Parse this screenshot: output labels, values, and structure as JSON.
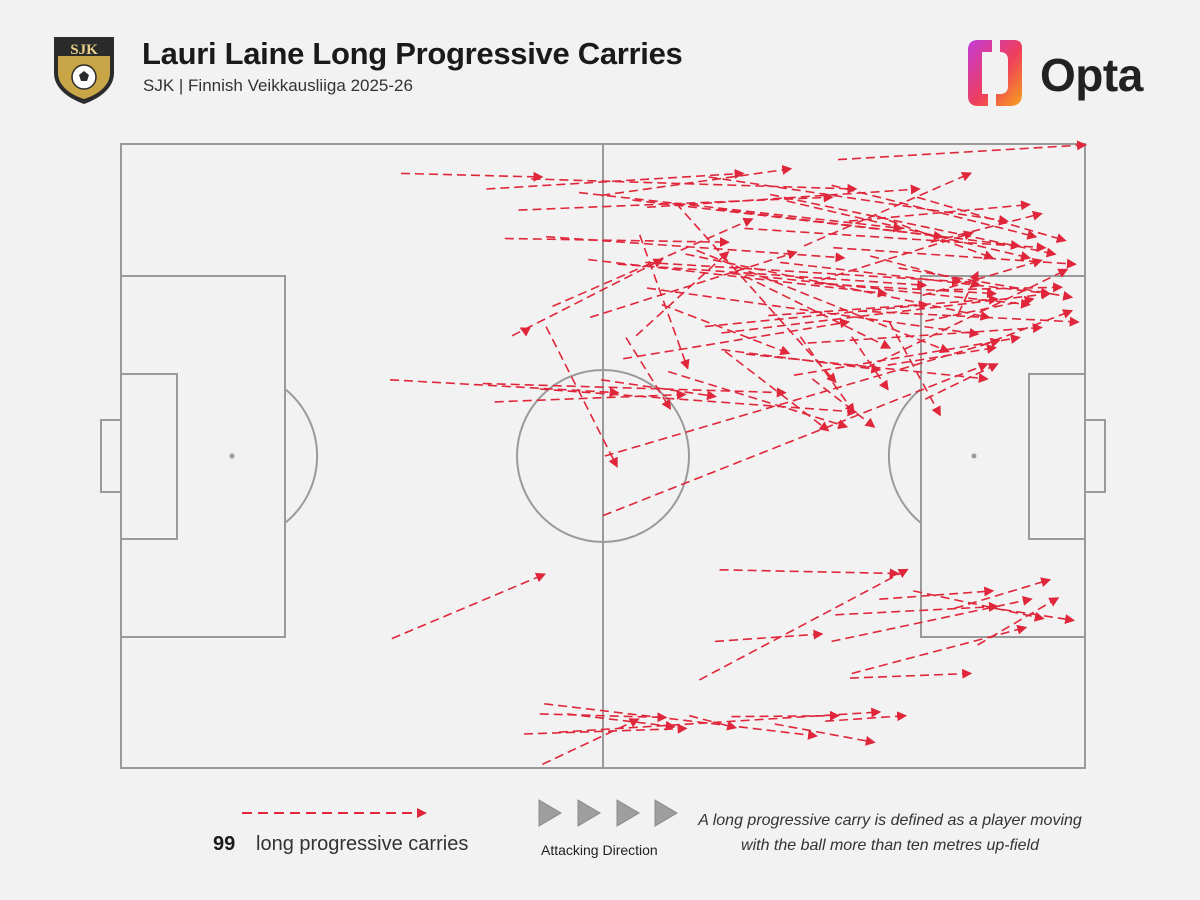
{
  "header": {
    "title": "Lauri Laine Long Progressive Carries",
    "subtitle": "SJK | Finnish Veikkausliiga 2025-26",
    "crest_text": "SJK",
    "brand": "Opta"
  },
  "legend": {
    "count": "99",
    "count_label": "long progressive carries",
    "direction_label": "Attacking Direction",
    "definition": "A long progressive carry is defined as a player moving with the ball more than ten metres up-field"
  },
  "colors": {
    "carry": "#e0263a",
    "pitch_lines": "#9a9a9a",
    "background": "#f2f2f2"
  },
  "chart_data": {
    "type": "scatter",
    "title": "Lauri Laine Long Progressive Carries",
    "subtitle": "SJK | Finnish Veikkausliiga 2025-26",
    "attacking_direction": "left-to-right",
    "pitch_dimensions": [
      105,
      68
    ],
    "xlim": [
      0,
      105
    ],
    "ylim": [
      0,
      68
    ],
    "total_carries": 99,
    "carries": [
      [
        30.5,
        64.8,
        45.8,
        64.4
      ],
      [
        39.8,
        63.1,
        67.7,
        64.8
      ],
      [
        44.7,
        64.2,
        80.0,
        63.1
      ],
      [
        43.3,
        60.8,
        77.4,
        62.2
      ],
      [
        49.9,
        62.7,
        85.0,
        58.8
      ],
      [
        55.7,
        61.9,
        89.4,
        57.9
      ],
      [
        64.0,
        64.4,
        96.5,
        59.6
      ],
      [
        70.7,
        62.5,
        101.7,
        56.0
      ],
      [
        78.1,
        66.3,
        105.0,
        67.9
      ],
      [
        57.3,
        61.1,
        86.9,
        63.1
      ],
      [
        65.0,
        60.9,
        97.8,
        56.9
      ],
      [
        72.5,
        61.8,
        98.9,
        55.6
      ],
      [
        79.3,
        59.6,
        98.9,
        61.4
      ],
      [
        67.9,
        58.8,
        100.6,
        56.7
      ],
      [
        74.4,
        56.9,
        92.5,
        64.8
      ],
      [
        77.4,
        63.5,
        99.6,
        57.9
      ],
      [
        86.7,
        62.2,
        102.8,
        57.5
      ],
      [
        82.2,
        60.2,
        94.9,
        55.6
      ],
      [
        88.2,
        57.3,
        100.2,
        60.4
      ],
      [
        52.3,
        62.4,
        72.9,
        65.3
      ],
      [
        41.8,
        57.7,
        66.1,
        57.3
      ],
      [
        46.3,
        57.9,
        78.7,
        55.6
      ],
      [
        50.9,
        55.4,
        83.3,
        51.7
      ],
      [
        54.1,
        54.9,
        87.6,
        52.6
      ],
      [
        57.1,
        55.1,
        91.4,
        53.0
      ],
      [
        61.5,
        56.0,
        94.5,
        49.1
      ],
      [
        66.5,
        53.9,
        98.9,
        50.5
      ],
      [
        71.8,
        55.1,
        101.1,
        51.7
      ],
      [
        77.6,
        56.7,
        103.9,
        54.9
      ],
      [
        84.7,
        54.5,
        103.5,
        51.3
      ],
      [
        80.3,
        49.8,
        104.2,
        48.6
      ],
      [
        70.5,
        49.3,
        95.4,
        51.1
      ],
      [
        63.6,
        48.1,
        87.8,
        50.5
      ],
      [
        57.3,
        52.3,
        93.3,
        47.3
      ],
      [
        62.7,
        56.4,
        90.1,
        45.4
      ],
      [
        65.4,
        47.4,
        101.1,
        51.7
      ],
      [
        74.8,
        46.3,
        100.2,
        48.0
      ],
      [
        68.1,
        45.1,
        94.3,
        42.4
      ],
      [
        73.3,
        42.8,
        97.8,
        46.9
      ],
      [
        81.2,
        43.6,
        103.0,
        54.3
      ],
      [
        60.4,
        61.6,
        77.8,
        42.1
      ],
      [
        56.5,
        58.1,
        61.7,
        43.6
      ],
      [
        47.0,
        50.3,
        68.7,
        59.8
      ],
      [
        42.6,
        47.1,
        58.9,
        55.4
      ],
      [
        51.1,
        49.1,
        73.5,
        56.2
      ],
      [
        56.1,
        47.1,
        66.1,
        56.2
      ],
      [
        54.7,
        44.6,
        79.2,
        48.6
      ],
      [
        65.4,
        45.6,
        82.6,
        43.4
      ],
      [
        58.9,
        50.5,
        72.7,
        45.2
      ],
      [
        67.9,
        53.6,
        83.7,
        45.8
      ],
      [
        76.3,
        53.2,
        92.7,
        58.3
      ],
      [
        87.3,
        51.5,
        100.2,
        55.3
      ],
      [
        75.5,
        52.8,
        95.2,
        51.7
      ],
      [
        81.6,
        55.8,
        93.5,
        52.6
      ],
      [
        91.2,
        49.5,
        93.3,
        54.0
      ],
      [
        87.6,
        48.7,
        99.3,
        51.1
      ],
      [
        83.5,
        43.9,
        95.2,
        45.8
      ],
      [
        93.6,
        46.0,
        103.5,
        49.8
      ],
      [
        89.2,
        52.1,
        102.4,
        52.4
      ],
      [
        44.0,
        47.7,
        43.6,
        47.9
      ],
      [
        29.3,
        42.3,
        54.1,
        40.9
      ],
      [
        39.4,
        41.9,
        72.3,
        40.9
      ],
      [
        45.6,
        41.3,
        80.0,
        38.8
      ],
      [
        46.3,
        48.1,
        54.0,
        32.9
      ],
      [
        55.0,
        46.9,
        59.8,
        39.2
      ],
      [
        59.6,
        43.2,
        79.0,
        37.2
      ],
      [
        65.8,
        45.4,
        77.0,
        36.8
      ],
      [
        74.0,
        47.0,
        79.8,
        38.8
      ],
      [
        75.3,
        42.4,
        82.0,
        37.2
      ],
      [
        83.7,
        48.6,
        89.2,
        38.5
      ],
      [
        87.6,
        40.2,
        95.4,
        44.0
      ],
      [
        79.6,
        47.0,
        83.5,
        41.3
      ],
      [
        52.7,
        34.0,
        95.6,
        46.6
      ],
      [
        52.5,
        27.5,
        94.3,
        44.0
      ],
      [
        52.3,
        42.3,
        64.7,
        40.5
      ],
      [
        40.7,
        39.9,
        61.4,
        40.7
      ],
      [
        29.5,
        14.1,
        46.1,
        21.1
      ],
      [
        65.2,
        21.6,
        84.6,
        21.2
      ],
      [
        63.0,
        9.6,
        85.6,
        21.6
      ],
      [
        64.7,
        13.8,
        76.3,
        14.6
      ],
      [
        77.4,
        13.8,
        99.1,
        18.4
      ],
      [
        77.8,
        16.7,
        95.4,
        17.6
      ],
      [
        82.6,
        18.4,
        94.9,
        19.3
      ],
      [
        93.3,
        13.4,
        102.0,
        18.5
      ],
      [
        90.8,
        17.4,
        101.1,
        20.5
      ],
      [
        86.3,
        19.3,
        100.4,
        16.3
      ],
      [
        94.5,
        17.5,
        103.7,
        16.1
      ],
      [
        79.6,
        10.3,
        98.5,
        15.3
      ],
      [
        79.4,
        9.8,
        92.5,
        10.3
      ],
      [
        45.6,
        5.9,
        59.3,
        5.5
      ],
      [
        66.5,
        5.6,
        78.1,
        5.7
      ],
      [
        47.7,
        3.9,
        82.6,
        6.1
      ],
      [
        46.1,
        7.0,
        75.7,
        3.5
      ],
      [
        48.6,
        5.9,
        60.2,
        4.5
      ],
      [
        61.9,
        5.7,
        66.9,
        4.4
      ],
      [
        71.2,
        4.8,
        82.0,
        2.8
      ],
      [
        43.9,
        3.7,
        61.5,
        4.3
      ],
      [
        76.7,
        5.1,
        85.4,
        5.7
      ],
      [
        45.9,
        0.4,
        56.3,
        5.3
      ]
    ]
  }
}
